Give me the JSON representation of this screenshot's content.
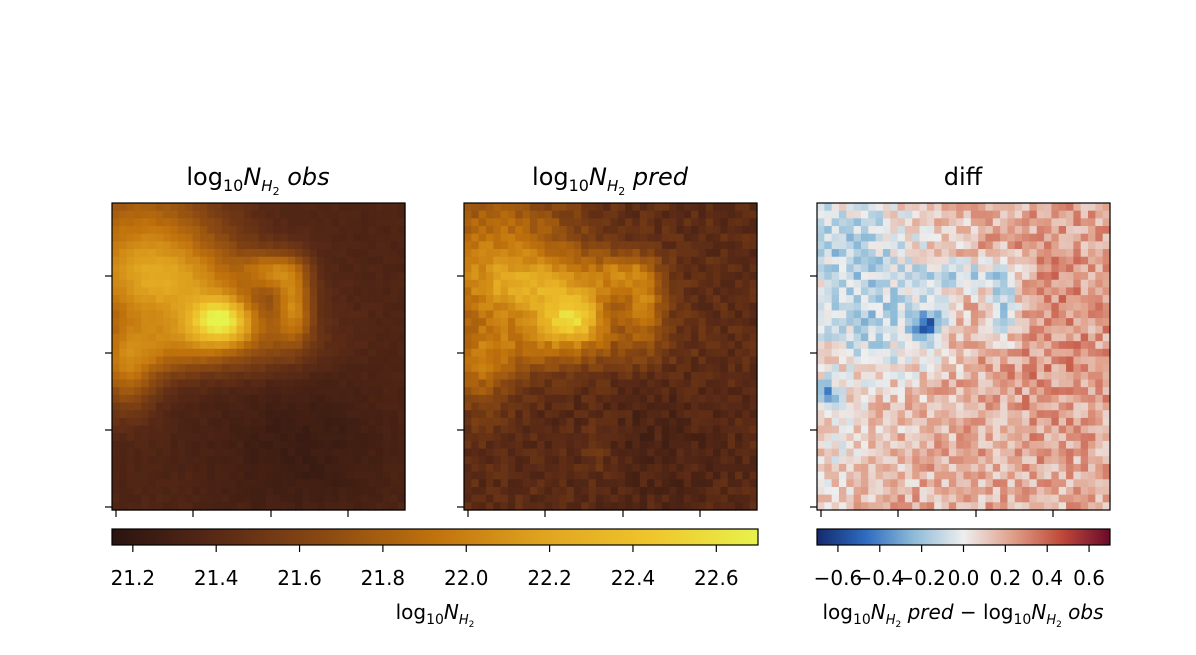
{
  "chart_data": [
    {
      "type": "heatmap",
      "title_parts": [
        "log",
        "10",
        "N",
        "H",
        "2",
        " obs"
      ],
      "colormap": "sunset-amber",
      "vmin": 21.15,
      "vmax": 22.7,
      "grid": "off",
      "x_ticks_drawn": 4,
      "y_ticks_drawn": 4,
      "tick_labels": "none"
    },
    {
      "type": "heatmap",
      "title_parts": [
        "log",
        "10",
        "N",
        "H",
        "2",
        " pred"
      ],
      "colormap": "sunset-amber",
      "vmin": 21.15,
      "vmax": 22.7,
      "grid": "off",
      "tick_labels": "none"
    },
    {
      "type": "heatmap",
      "title": "diff",
      "colormap": "diverging-blue-red",
      "vmin": -0.7,
      "vmax": 0.7,
      "grid": "off",
      "tick_labels": "none"
    }
  ],
  "colorbars": [
    {
      "orientation": "horizontal",
      "range": [
        21.15,
        22.7
      ],
      "ticks": [
        "21.2",
        "21.4",
        "21.6",
        "21.8",
        "22.0",
        "22.2",
        "22.4",
        "22.6"
      ],
      "tick_values": [
        21.2,
        21.4,
        21.6,
        21.8,
        22.0,
        22.2,
        22.4,
        22.6
      ],
      "label_parts": [
        "log",
        "10",
        "N",
        "H",
        "2"
      ],
      "colors": [
        "#2a1410",
        "#5a2a16",
        "#8c4a12",
        "#c0720c",
        "#e0a420",
        "#efc52c",
        "#e8f24c"
      ]
    },
    {
      "orientation": "horizontal",
      "range": [
        -0.7,
        0.7
      ],
      "ticks": [
        "−0.6",
        "−0.4",
        "−0.2",
        "0.0",
        "0.2",
        "0.4",
        "0.6"
      ],
      "tick_values": [
        -0.6,
        -0.4,
        -0.2,
        0.0,
        0.2,
        0.4,
        0.6
      ],
      "label_parts": [
        "log",
        "10",
        "N",
        "H",
        "2",
        " pred",
        " − ",
        "log",
        "10",
        "N",
        "H",
        "2",
        " obs"
      ],
      "colors": [
        "#142a6e",
        "#2e6cc0",
        "#8fbcd8",
        "#eeeeee",
        "#e0a08a",
        "#c04a3a",
        "#6a0a2a"
      ]
    }
  ]
}
